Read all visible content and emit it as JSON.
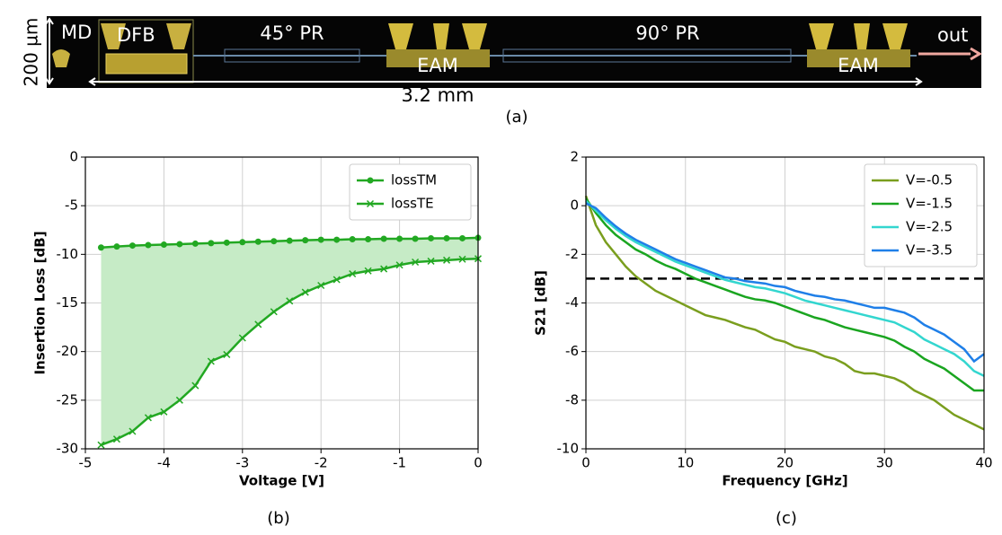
{
  "figure_a": {
    "labels": [
      "MD",
      "DFB",
      "45° PR",
      "EAM",
      "90° PR",
      "EAM",
      "out"
    ],
    "height_label": "200 µm",
    "length_label": "3.2 mm",
    "caption": "(a)"
  },
  "captions": [
    "(b)",
    "(c)"
  ],
  "chart_data": [
    {
      "type": "line",
      "xlabel": "Voltage [V]",
      "ylabel": "Insertion Loss [dB]",
      "x": [
        -4.8,
        -4.6,
        -4.4,
        -4.2,
        -4.0,
        -3.8,
        -3.6,
        -3.4,
        -3.2,
        -3.0,
        -2.8,
        -2.6,
        -2.4,
        -2.2,
        -2.0,
        -1.8,
        -1.6,
        -1.4,
        -1.2,
        -1.0,
        -0.8,
        -0.6,
        -0.4,
        -0.2,
        0
      ],
      "series": [
        {
          "name": "lossTM",
          "color": "#22a822",
          "marker": "o",
          "values": [
            -9.3,
            -9.2,
            -9.1,
            -9.05,
            -9.0,
            -8.95,
            -8.9,
            -8.85,
            -8.8,
            -8.75,
            -8.7,
            -8.65,
            -8.6,
            -8.55,
            -8.5,
            -8.5,
            -8.45,
            -8.45,
            -8.4,
            -8.4,
            -8.4,
            -8.35,
            -8.35,
            -8.35,
            -8.3
          ]
        },
        {
          "name": "lossTE",
          "color": "#22a822",
          "marker": "x",
          "values": [
            -29.6,
            -29.0,
            -28.2,
            -26.8,
            -26.2,
            -25.0,
            -23.5,
            -21.0,
            -20.3,
            -18.6,
            -17.2,
            -15.9,
            -14.8,
            -13.9,
            -13.2,
            -12.6,
            -12.0,
            -11.7,
            -11.5,
            -11.1,
            -10.8,
            -10.7,
            -10.6,
            -10.5,
            -10.45
          ]
        }
      ],
      "fill_between": {
        "series": [
          0,
          1
        ],
        "color": "#c6ebc6"
      },
      "xlim": [
        -5,
        0
      ],
      "xticks": [
        -5,
        -4,
        -3,
        -2,
        -1,
        0
      ],
      "ylim": [
        -30,
        0
      ],
      "yticks": [
        -30,
        -25,
        -20,
        -15,
        -10,
        -5,
        0
      ],
      "grid": true,
      "legend": "upper-right"
    },
    {
      "type": "line",
      "xlabel": "Frequency [GHz]",
      "ylabel": "S21 [dB]",
      "x": [
        0,
        1,
        2,
        3,
        4,
        5,
        6,
        7,
        8,
        9,
        10,
        11,
        12,
        13,
        14,
        15,
        16,
        17,
        18,
        19,
        20,
        21,
        22,
        23,
        24,
        25,
        26,
        27,
        28,
        29,
        30,
        31,
        32,
        33,
        34,
        35,
        36,
        37,
        38,
        39,
        40
      ],
      "series": [
        {
          "name": "V=-0.5",
          "color": "#7a9e1e",
          "values": [
            0.4,
            -0.8,
            -1.5,
            -2.0,
            -2.5,
            -2.9,
            -3.2,
            -3.5,
            -3.7,
            -3.9,
            -4.1,
            -4.3,
            -4.5,
            -4.6,
            -4.7,
            -4.85,
            -5.0,
            -5.1,
            -5.3,
            -5.5,
            -5.6,
            -5.8,
            -5.9,
            -6.0,
            -6.2,
            -6.3,
            -6.5,
            -6.8,
            -6.9,
            -6.9,
            -7.0,
            -7.1,
            -7.3,
            -7.6,
            -7.8,
            -8.0,
            -8.3,
            -8.6,
            -8.8,
            -9.0,
            -9.2
          ]
        },
        {
          "name": "V=-1.5",
          "color": "#1aa520",
          "values": [
            0.3,
            -0.3,
            -0.8,
            -1.2,
            -1.5,
            -1.8,
            -2.0,
            -2.25,
            -2.45,
            -2.6,
            -2.8,
            -3.0,
            -3.15,
            -3.3,
            -3.45,
            -3.6,
            -3.75,
            -3.85,
            -3.9,
            -4.0,
            -4.15,
            -4.3,
            -4.45,
            -4.6,
            -4.7,
            -4.85,
            -5.0,
            -5.1,
            -5.2,
            -5.3,
            -5.4,
            -5.55,
            -5.8,
            -6.0,
            -6.3,
            -6.5,
            -6.7,
            -7.0,
            -7.3,
            -7.6,
            -7.6
          ]
        },
        {
          "name": "V=-2.5",
          "color": "#33d6cf",
          "values": [
            0.2,
            -0.2,
            -0.6,
            -0.95,
            -1.25,
            -1.5,
            -1.7,
            -1.9,
            -2.1,
            -2.3,
            -2.45,
            -2.6,
            -2.75,
            -2.9,
            -3.05,
            -3.15,
            -3.25,
            -3.35,
            -3.4,
            -3.5,
            -3.6,
            -3.75,
            -3.9,
            -4.0,
            -4.1,
            -4.2,
            -4.3,
            -4.4,
            -4.5,
            -4.6,
            -4.7,
            -4.8,
            -5.0,
            -5.2,
            -5.5,
            -5.7,
            -5.9,
            -6.1,
            -6.4,
            -6.8,
            -7.0
          ]
        },
        {
          "name": "V=-3.5",
          "color": "#1f7fe8",
          "values": [
            0.1,
            -0.1,
            -0.5,
            -0.85,
            -1.15,
            -1.4,
            -1.6,
            -1.8,
            -2.0,
            -2.2,
            -2.35,
            -2.5,
            -2.65,
            -2.8,
            -2.95,
            -3.0,
            -3.1,
            -3.15,
            -3.2,
            -3.3,
            -3.35,
            -3.5,
            -3.6,
            -3.7,
            -3.75,
            -3.85,
            -3.9,
            -4.0,
            -4.1,
            -4.2,
            -4.2,
            -4.3,
            -4.4,
            -4.6,
            -4.9,
            -5.1,
            -5.3,
            -5.6,
            -5.9,
            -6.4,
            -6.1
          ]
        }
      ],
      "reference_line": {
        "value": -3,
        "color": "#000000"
      },
      "xlim": [
        0,
        40
      ],
      "xticks": [
        0,
        10,
        20,
        30,
        40
      ],
      "ylim": [
        -10,
        2
      ],
      "yticks": [
        -10,
        -8,
        -6,
        -4,
        -2,
        0,
        2
      ],
      "grid": true,
      "legend": "upper-right"
    }
  ]
}
